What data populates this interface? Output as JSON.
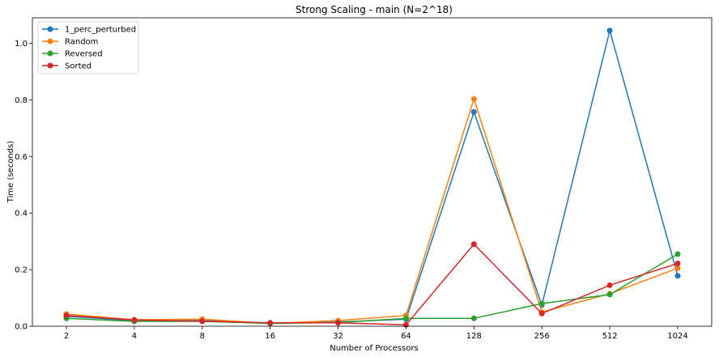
{
  "chart_data": {
    "type": "line",
    "title": "Strong Scaling - main (N=2^18)",
    "xlabel": "Number of Processors",
    "ylabel": "Time (seconds)",
    "categories": [
      "2",
      "4",
      "8",
      "16",
      "32",
      "64",
      "128",
      "256",
      "512",
      "1024"
    ],
    "ylim": [
      0,
      1.09
    ],
    "yticks": [
      "0.0",
      "0.2",
      "0.4",
      "0.6",
      "0.8",
      "1.0"
    ],
    "grid": false,
    "legend_position": "top-left",
    "series": [
      {
        "name": "1_perc_perturbed",
        "color": "#1f77b4",
        "values": [
          0.035,
          0.02,
          0.02,
          0.01,
          0.015,
          0.025,
          0.757,
          0.075,
          1.045,
          0.178
        ]
      },
      {
        "name": "Random",
        "color": "#ff7f0e",
        "values": [
          0.043,
          0.023,
          0.025,
          0.01,
          0.02,
          0.038,
          0.803,
          0.05,
          0.115,
          0.205
        ]
      },
      {
        "name": "Reversed",
        "color": "#2ca02c",
        "values": [
          0.028,
          0.017,
          0.017,
          0.01,
          0.013,
          0.028,
          0.028,
          0.08,
          0.112,
          0.255
        ]
      },
      {
        "name": "Sorted",
        "color": "#d62728",
        "values": [
          0.038,
          0.022,
          0.018,
          0.012,
          0.012,
          0.005,
          0.29,
          0.045,
          0.145,
          0.222
        ]
      }
    ]
  }
}
